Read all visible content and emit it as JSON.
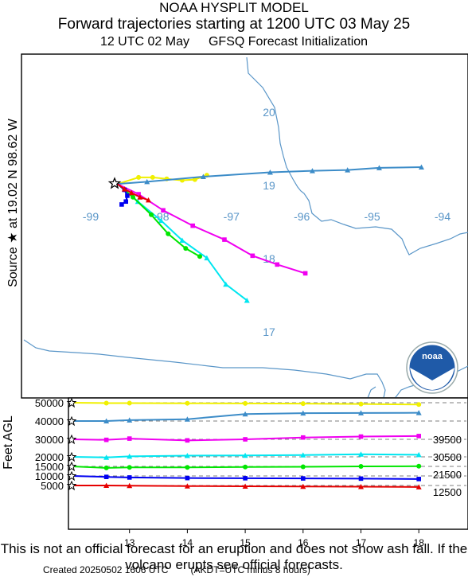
{
  "header": {
    "model": "NOAA HYSPLIT MODEL",
    "title": "Forward trajectories starting at 1200 UTC 03 May 25",
    "init_time": "12 UTC 02 May",
    "init_model": "GFSQ  Forecast Initialization"
  },
  "source_label": "Source ★ at  19.02 N  98.62 W",
  "altitude_axis_label": "Feet AGL",
  "disclaimer": "This is not an official forecast for an eruption and does not show ash fall. If the volcano erupts see official forecasts.",
  "footer": {
    "created": "Created 20250502 1606 UTC",
    "timezone_note": "(AKDT=UTC minus 8 hours)"
  },
  "logo_text": "noaa",
  "colors": {
    "yellow": "#f0f000",
    "steelblue": "#3c8cc8",
    "magenta": "#f000f0",
    "cyan": "#00e6f0",
    "green": "#00e600",
    "blue": "#0000f0",
    "red": "#e60000",
    "map": "#5a96c8"
  },
  "chart_data": [
    {
      "type": "line",
      "name": "trajectory-map",
      "map_labels": {
        "longitudes": [
          "-99",
          "-98",
          "-97",
          "-96",
          "-95",
          "-94"
        ],
        "latitudes": [
          "20",
          "19",
          "18",
          "17"
        ]
      },
      "source": {
        "lat": 19.02,
        "lon": -98.62
      },
      "series": [
        {
          "color": "yellow",
          "points": [
            [
              -98.62,
              19.02
            ],
            [
              -98.32,
              19.11
            ],
            [
              -98.12,
              19.11
            ],
            [
              -97.92,
              19.09
            ],
            [
              -97.7,
              19.07
            ],
            [
              -97.52,
              19.08
            ],
            [
              -97.35,
              19.14
            ]
          ]
        },
        {
          "color": "steelblue",
          "points": [
            [
              -98.62,
              19.02
            ],
            [
              -98.2,
              19.05
            ],
            [
              -97.4,
              19.12
            ],
            [
              -96.45,
              19.18
            ],
            [
              -95.85,
              19.2
            ],
            [
              -95.35,
              19.21
            ],
            [
              -94.9,
              19.24
            ],
            [
              -94.3,
              19.25
            ]
          ]
        },
        {
          "color": "magenta",
          "points": [
            [
              -98.62,
              19.02
            ],
            [
              -98.32,
              18.88
            ],
            [
              -97.97,
              18.66
            ],
            [
              -97.55,
              18.45
            ],
            [
              -97.1,
              18.26
            ],
            [
              -96.7,
              18.04
            ],
            [
              -96.35,
              17.92
            ],
            [
              -95.95,
              17.8
            ]
          ]
        },
        {
          "color": "cyan",
          "points": [
            [
              -98.62,
              19.02
            ],
            [
              -98.33,
              18.78
            ],
            [
              -98.0,
              18.52
            ],
            [
              -97.7,
              18.25
            ],
            [
              -97.35,
              18.01
            ],
            [
              -97.08,
              17.65
            ],
            [
              -96.78,
              17.43
            ]
          ]
        },
        {
          "color": "green",
          "points": [
            [
              -98.62,
              19.02
            ],
            [
              -98.4,
              18.84
            ],
            [
              -98.14,
              18.6
            ],
            [
              -97.9,
              18.34
            ],
            [
              -97.65,
              18.14
            ],
            [
              -97.45,
              18.03
            ]
          ]
        },
        {
          "color": "blue",
          "points": [
            [
              -98.62,
              19.02
            ],
            [
              -98.52,
              18.94
            ],
            [
              -98.48,
              18.86
            ],
            [
              -98.5,
              18.78
            ],
            [
              -98.56,
              18.74
            ]
          ]
        },
        {
          "color": "red",
          "points": [
            [
              -98.62,
              19.02
            ],
            [
              -98.52,
              18.95
            ],
            [
              -98.42,
              18.9
            ],
            [
              -98.3,
              18.84
            ],
            [
              -98.18,
              18.8
            ]
          ]
        }
      ]
    },
    {
      "type": "line",
      "name": "altitude-panel",
      "xlabel": "",
      "ylabel": "Feet AGL",
      "x_ticks": [
        "13",
        "14",
        "15",
        "16",
        "17",
        "18"
      ],
      "x_range": [
        12,
        18
      ],
      "y_ticks": [
        "50000",
        "40000",
        "30000",
        "20000",
        "15000",
        "10000",
        "5000"
      ],
      "y_range": [
        3000,
        51000
      ],
      "right_labels": [
        "39500",
        "30500",
        "21500",
        "12500"
      ],
      "series": [
        {
          "color": "yellow",
          "start": 50000,
          "values": [
            49800,
            49800,
            49700,
            49600,
            49500,
            49300,
            49000
          ]
        },
        {
          "color": "steelblue",
          "start": 40000,
          "values": [
            40000,
            40500,
            41000,
            43800,
            44300,
            44400,
            44500
          ]
        },
        {
          "color": "magenta",
          "start": 30000,
          "values": [
            29700,
            30400,
            29400,
            30000,
            31000,
            31500,
            31800
          ]
        },
        {
          "color": "cyan",
          "start": 20000,
          "values": [
            19700,
            20300,
            20700,
            20800,
            21000,
            21500,
            21200
          ]
        },
        {
          "color": "green",
          "start": 15000,
          "values": [
            14200,
            14500,
            14500,
            14700,
            14800,
            15000,
            15100
          ]
        },
        {
          "color": "blue",
          "start": 10000,
          "values": [
            9500,
            9200,
            8900,
            8800,
            8700,
            8600,
            8400
          ]
        },
        {
          "color": "red",
          "start": 5000,
          "values": [
            5000,
            4900,
            4700,
            4600,
            4500,
            4400,
            4200
          ]
        }
      ]
    }
  ]
}
